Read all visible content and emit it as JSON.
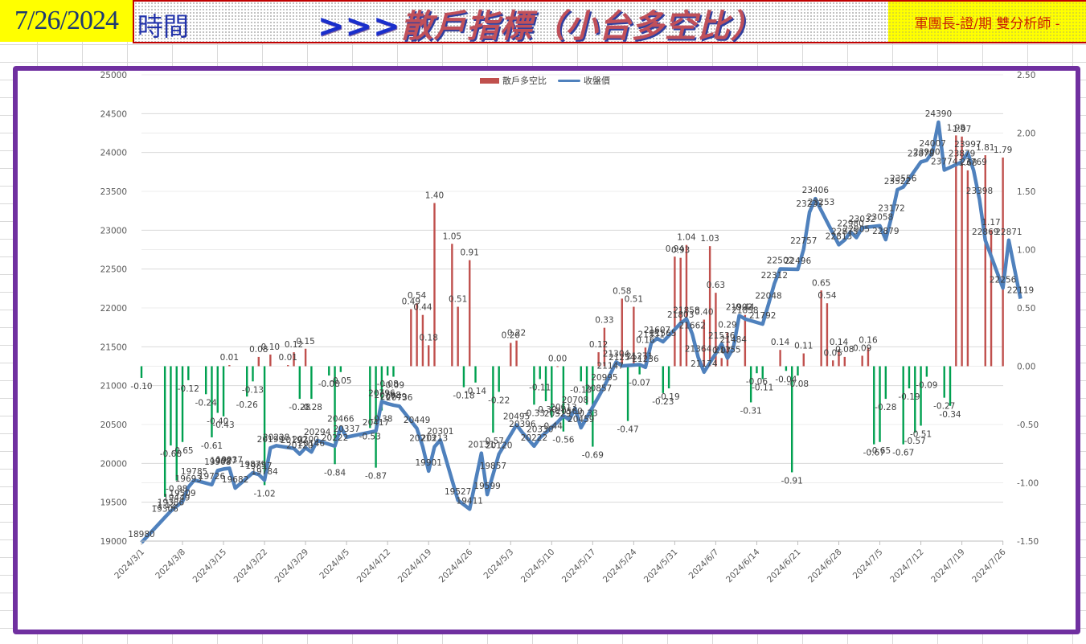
{
  "header": {
    "date": "7/26/2024",
    "time_label": "時間",
    "title_arrows": ">>>",
    "title_text": "散戶指標（小台多空比）",
    "analyst": "軍團長-證/期 雙分析師 -"
  },
  "colors": {
    "frame": "#7030a0",
    "bar_positive": "#c0504d",
    "bar_negative": "#00a050",
    "line": "#4f81bd",
    "date_cell_bg": "#ffff00",
    "title_border": "#c00000"
  },
  "chart_data": {
    "type": "bar+line",
    "title": "",
    "legend": [
      "散戶多空比",
      "收盤價"
    ],
    "legend_position": "top",
    "left_axis": {
      "label": "收盤價",
      "range": [
        19000,
        25000
      ],
      "ticks": [
        "25000",
        "24500",
        "24000",
        "23500",
        "23000",
        "22500",
        "22000",
        "21500",
        "21000",
        "20500",
        "20000",
        "19500",
        "19000"
      ]
    },
    "right_axis": {
      "label": "散戶多空比",
      "range": [
        -1.5,
        2.5
      ],
      "ticks": [
        "2.50",
        "2.00",
        "1.50",
        "1.00",
        "0.50",
        "0.00",
        "-0.50",
        "-1.00",
        "-1.50"
      ]
    },
    "x_ticks": [
      "2024/3/1",
      "2024/3/8",
      "2024/3/15",
      "2024/3/22",
      "2024/3/29",
      "2024/4/5",
      "2024/4/12",
      "2024/4/19",
      "2024/4/26",
      "2024/5/3",
      "2024/5/10",
      "2024/5/17",
      "2024/5/24",
      "2024/5/31",
      "2024/6/7",
      "2024/6/14",
      "2024/6/21",
      "2024/6/28",
      "2024/7/5",
      "2024/7/12",
      "2024/7/19",
      "2024/7/26"
    ],
    "grid": true,
    "series": [
      {
        "name": "散戶多空比",
        "type": "bar",
        "points": [
          {
            "d": 0,
            "v": -0.1
          },
          {
            "d": 4,
            "v": -1.12
          },
          {
            "d": 5,
            "v": -0.68
          },
          {
            "d": 6,
            "v": -0.98
          },
          {
            "d": 7,
            "v": -0.65
          },
          {
            "d": 8,
            "v": -0.12
          },
          {
            "d": 11,
            "v": -0.24
          },
          {
            "d": 12,
            "v": -0.61
          },
          {
            "d": 13,
            "v": -0.4
          },
          {
            "d": 14,
            "v": -0.43
          },
          {
            "d": 15,
            "v": 0.01
          },
          {
            "d": 18,
            "v": -0.26
          },
          {
            "d": 19,
            "v": -0.13
          },
          {
            "d": 20,
            "v": 0.08
          },
          {
            "d": 21,
            "v": -1.02
          },
          {
            "d": 22,
            "v": 0.1
          },
          {
            "d": 25,
            "v": 0.01
          },
          {
            "d": 26,
            "v": 0.12
          },
          {
            "d": 27,
            "v": -0.28
          },
          {
            "d": 28,
            "v": 0.15
          },
          {
            "d": 29,
            "v": -0.28
          },
          {
            "d": 32,
            "v": -0.08
          },
          {
            "d": 33,
            "v": -0.84
          },
          {
            "d": 34,
            "v": -0.05
          },
          {
            "d": 39,
            "v": -0.53
          },
          {
            "d": 40,
            "v": -0.87
          },
          {
            "d": 41,
            "v": -0.38
          },
          {
            "d": 42,
            "v": -0.08
          },
          {
            "d": 43,
            "v": -0.09
          },
          {
            "d": 46,
            "v": 0.49
          },
          {
            "d": 47,
            "v": 0.54
          },
          {
            "d": 48,
            "v": 0.44
          },
          {
            "d": 49,
            "v": 0.18
          },
          {
            "d": 50,
            "v": 1.4
          },
          {
            "d": 53,
            "v": 1.05
          },
          {
            "d": 54,
            "v": 0.51
          },
          {
            "d": 55,
            "v": -0.18
          },
          {
            "d": 56,
            "v": 0.91
          },
          {
            "d": 57,
            "v": -0.14
          },
          {
            "d": 60,
            "v": -0.57
          },
          {
            "d": 61,
            "v": -0.22
          },
          {
            "d": 63,
            "v": 0.2
          },
          {
            "d": 64,
            "v": 0.22
          },
          {
            "d": 67,
            "v": -0.33
          },
          {
            "d": 68,
            "v": -0.11
          },
          {
            "d": 69,
            "v": -0.3
          },
          {
            "d": 70,
            "v": -0.44
          },
          {
            "d": 71,
            "v": 0.0
          },
          {
            "d": 72,
            "v": -0.56
          },
          {
            "d": 75,
            "v": -0.13
          },
          {
            "d": 76,
            "v": -0.33
          },
          {
            "d": 77,
            "v": -0.69
          },
          {
            "d": 78,
            "v": 0.12
          },
          {
            "d": 79,
            "v": 0.33
          },
          {
            "d": 82,
            "v": 0.58
          },
          {
            "d": 83,
            "v": -0.47
          },
          {
            "d": 84,
            "v": 0.51
          },
          {
            "d": 85,
            "v": -0.07
          },
          {
            "d": 86,
            "v": 0.16
          },
          {
            "d": 89,
            "v": -0.23
          },
          {
            "d": 90,
            "v": -0.19
          },
          {
            "d": 91,
            "v": 0.94
          },
          {
            "d": 92,
            "v": 0.93
          },
          {
            "d": 93,
            "v": 1.04
          },
          {
            "d": 96,
            "v": 0.4
          },
          {
            "d": 97,
            "v": 1.03
          },
          {
            "d": 98,
            "v": 0.63
          },
          {
            "d": 99,
            "v": 0.07
          },
          {
            "d": 100,
            "v": 0.29
          },
          {
            "d": 103,
            "v": 0.44
          },
          {
            "d": 104,
            "v": -0.31
          },
          {
            "d": 105,
            "v": -0.06
          },
          {
            "d": 106,
            "v": -0.11
          },
          {
            "d": 109,
            "v": 0.14
          },
          {
            "d": 110,
            "v": -0.04
          },
          {
            "d": 111,
            "v": -0.91
          },
          {
            "d": 112,
            "v": -0.08
          },
          {
            "d": 113,
            "v": 0.11
          },
          {
            "d": 116,
            "v": 0.65
          },
          {
            "d": 117,
            "v": 0.54
          },
          {
            "d": 118,
            "v": 0.05
          },
          {
            "d": 119,
            "v": 0.14
          },
          {
            "d": 120,
            "v": 0.08
          },
          {
            "d": 123,
            "v": 0.09
          },
          {
            "d": 124,
            "v": 0.16
          },
          {
            "d": 125,
            "v": -0.67
          },
          {
            "d": 126,
            "v": -0.65
          },
          {
            "d": 127,
            "v": -0.28
          },
          {
            "d": 130,
            "v": -0.67
          },
          {
            "d": 131,
            "v": -0.19
          },
          {
            "d": 132,
            "v": -0.57
          },
          {
            "d": 133,
            "v": -0.51
          },
          {
            "d": 134,
            "v": -0.09
          },
          {
            "d": 137,
            "v": -0.27
          },
          {
            "d": 138,
            "v": -0.34
          },
          {
            "d": 139,
            "v": 1.98
          },
          {
            "d": 140,
            "v": 1.97
          },
          {
            "d": 141,
            "v": 1.68
          },
          {
            "d": 144,
            "v": 1.81
          },
          {
            "d": 145,
            "v": 1.17
          },
          {
            "d": 147,
            "v": 1.79
          }
        ]
      },
      {
        "name": "收盤價",
        "type": "line",
        "points": [
          {
            "d": 0,
            "v": 18980
          },
          {
            "d": 4,
            "v": 19306
          },
          {
            "d": 5,
            "v": 19386
          },
          {
            "d": 6,
            "v": 19449
          },
          {
            "d": 7,
            "v": 19509
          },
          {
            "d": 8,
            "v": 19693
          },
          {
            "d": 9,
            "v": 19785
          },
          {
            "d": 12,
            "v": 19726
          },
          {
            "d": 13,
            "v": 19908
          },
          {
            "d": 14,
            "v": 19927
          },
          {
            "d": 15,
            "v": 19937
          },
          {
            "d": 16,
            "v": 19682
          },
          {
            "d": 19,
            "v": 19879
          },
          {
            "d": 20,
            "v": 19857
          },
          {
            "d": 21,
            "v": 19784
          },
          {
            "d": 22,
            "v": 20199
          },
          {
            "d": 23,
            "v": 20228
          },
          {
            "d": 26,
            "v": 20192
          },
          {
            "d": 27,
            "v": 20120
          },
          {
            "d": 28,
            "v": 20200
          },
          {
            "d": 29,
            "v": 20146
          },
          {
            "d": 30,
            "v": 20294
          },
          {
            "d": 33,
            "v": 20222
          },
          {
            "d": 34,
            "v": 20466
          },
          {
            "d": 35,
            "v": 20337
          },
          {
            "d": 40,
            "v": 20417
          },
          {
            "d": 41,
            "v": 20796
          },
          {
            "d": 42,
            "v": 20768
          },
          {
            "d": 43,
            "v": 20749
          },
          {
            "d": 44,
            "v": 20736
          },
          {
            "d": 47,
            "v": 20449
          },
          {
            "d": 48,
            "v": 20213
          },
          {
            "d": 49,
            "v": 19901
          },
          {
            "d": 50,
            "v": 20213
          },
          {
            "d": 51,
            "v": 20301
          },
          {
            "d": 54,
            "v": 19527
          },
          {
            "d": 56,
            "v": 19411
          },
          {
            "d": 58,
            "v": 20131
          },
          {
            "d": 59,
            "v": 19599
          },
          {
            "d": 60,
            "v": 19857
          },
          {
            "d": 61,
            "v": 20120
          },
          {
            "d": 64,
            "v": 20495
          },
          {
            "d": 65,
            "v": 20396
          },
          {
            "d": 67,
            "v": 20222
          },
          {
            "d": 68,
            "v": 20330
          },
          {
            "d": 71,
            "v": 20529
          },
          {
            "d": 72,
            "v": 20613
          },
          {
            "d": 73,
            "v": 20560
          },
          {
            "d": 74,
            "v": 20708
          },
          {
            "d": 75,
            "v": 20459
          },
          {
            "d": 78,
            "v": 20857
          },
          {
            "d": 79,
            "v": 20995
          },
          {
            "d": 80,
            "v": 21147
          },
          {
            "d": 81,
            "v": 21304
          },
          {
            "d": 82,
            "v": 21254
          },
          {
            "d": 85,
            "v": 21271
          },
          {
            "d": 86,
            "v": 21236
          },
          {
            "d": 87,
            "v": 21551
          },
          {
            "d": 88,
            "v": 21607
          },
          {
            "d": 89,
            "v": 21565
          },
          {
            "d": 92,
            "v": 21803
          },
          {
            "d": 93,
            "v": 21858
          },
          {
            "d": 94,
            "v": 21662
          },
          {
            "d": 95,
            "v": 21364
          },
          {
            "d": 96,
            "v": 21174
          },
          {
            "d": 99,
            "v": 21536
          },
          {
            "d": 100,
            "v": 21355
          },
          {
            "d": 101,
            "v": 21484
          },
          {
            "d": 102,
            "v": 21902
          },
          {
            "d": 103,
            "v": 21858
          },
          {
            "d": 106,
            "v": 21792
          },
          {
            "d": 107,
            "v": 22048
          },
          {
            "d": 108,
            "v": 22312
          },
          {
            "d": 109,
            "v": 22502
          },
          {
            "d": 112,
            "v": 22496
          },
          {
            "d": 113,
            "v": 22757
          },
          {
            "d": 114,
            "v": 23233
          },
          {
            "d": 115,
            "v": 23406
          },
          {
            "d": 116,
            "v": 23253
          },
          {
            "d": 119,
            "v": 22813
          },
          {
            "d": 120,
            "v": 22875
          },
          {
            "d": 121,
            "v": 22980
          },
          {
            "d": 122,
            "v": 22905
          },
          {
            "d": 123,
            "v": 23032
          },
          {
            "d": 126,
            "v": 23058
          },
          {
            "d": 127,
            "v": 22879
          },
          {
            "d": 128,
            "v": 23172
          },
          {
            "d": 129,
            "v": 23522
          },
          {
            "d": 130,
            "v": 23556
          },
          {
            "d": 133,
            "v": 23878
          },
          {
            "d": 134,
            "v": 23900
          },
          {
            "d": 135,
            "v": 24007
          },
          {
            "d": 136,
            "v": 24390
          },
          {
            "d": 137,
            "v": 23774
          },
          {
            "d": 140,
            "v": 23879
          },
          {
            "d": 141,
            "v": 23997
          },
          {
            "d": 142,
            "v": 23769
          },
          {
            "d": 143,
            "v": 23398
          },
          {
            "d": 144,
            "v": 22869
          },
          {
            "d": 147,
            "v": 22256
          },
          {
            "d": 148,
            "v": 22871
          },
          {
            "d": 150,
            "v": 22119
          }
        ]
      }
    ]
  }
}
